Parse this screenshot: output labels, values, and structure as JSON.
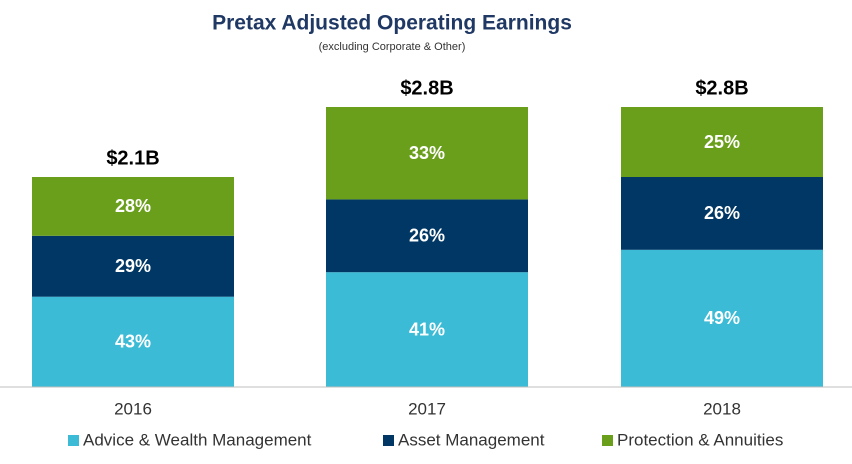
{
  "chart_data": {
    "type": "stacked_bar",
    "title": "Pretax Adjusted Operating Earnings",
    "subtitle": "(excluding Corporate & Other)",
    "categories": [
      "2016",
      "2017",
      "2018"
    ],
    "totals": {
      "values": [
        2.1,
        2.8,
        2.8
      ],
      "value_labels": [
        "$2.1B",
        "$2.8B",
        "$2.8B"
      ]
    },
    "series": [
      {
        "name": "Advice & Wealth Management",
        "color": "#3bbbd6",
        "values": [
          43,
          41,
          49
        ],
        "value_labels": [
          "43%",
          "41%",
          "49%"
        ]
      },
      {
        "name": "Asset Management",
        "color": "#003764",
        "values": [
          29,
          26,
          26
        ],
        "value_labels": [
          "29%",
          "26%",
          "26%"
        ]
      },
      {
        "name": "Protection & Annuities",
        "color": "#6a9f1b",
        "values": [
          28,
          33,
          25
        ],
        "value_labels": [
          "28%",
          "33%",
          "25%"
        ]
      }
    ],
    "legend": "bottom"
  }
}
